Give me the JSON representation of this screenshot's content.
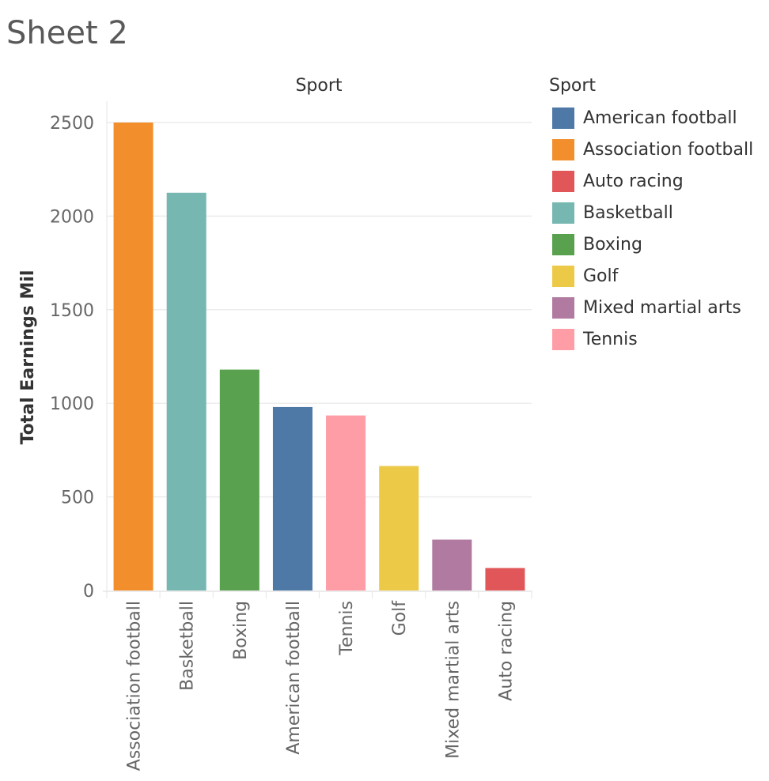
{
  "sheet": {
    "title": "Sheet 2"
  },
  "chart_data": {
    "type": "bar",
    "title": "Sport",
    "xlabel": "",
    "ylabel": "Total Earnings Mil",
    "ylim": [
      0,
      2500
    ],
    "yticks": [
      0,
      500,
      1000,
      1500,
      2000,
      2500
    ],
    "grid": true,
    "legend_position": "right",
    "categories": [
      "Association football",
      "Basketball",
      "Boxing",
      "American football",
      "Tennis",
      "Golf",
      "Mixed martial arts",
      "Auto racing"
    ],
    "values": [
      2500,
      2125,
      1180,
      980,
      935,
      665,
      272,
      120
    ],
    "colors": [
      "#f28e2b",
      "#76b7b2",
      "#59a14f",
      "#4e79a7",
      "#ff9da7",
      "#edc948",
      "#b07aa1",
      "#e15759"
    ]
  },
  "legend": {
    "title": "Sport",
    "items": [
      {
        "label": "American football",
        "color": "#4e79a7"
      },
      {
        "label": "Association football",
        "color": "#f28e2b"
      },
      {
        "label": "Auto racing",
        "color": "#e15759"
      },
      {
        "label": "Basketball",
        "color": "#76b7b2"
      },
      {
        "label": "Boxing",
        "color": "#59a14f"
      },
      {
        "label": "Golf",
        "color": "#edc948"
      },
      {
        "label": "Mixed martial arts",
        "color": "#b07aa1"
      },
      {
        "label": "Tennis",
        "color": "#ff9da7"
      }
    ]
  }
}
